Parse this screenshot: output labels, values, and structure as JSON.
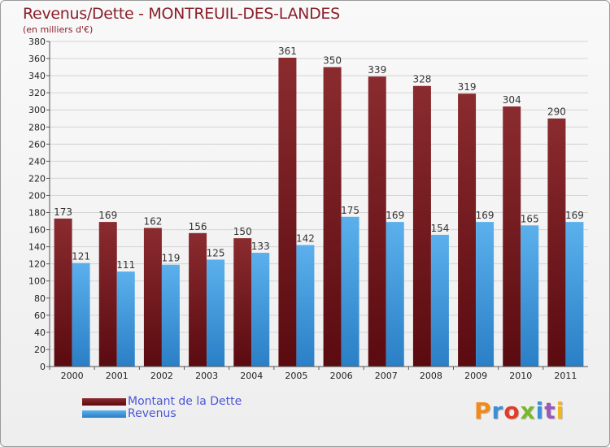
{
  "header": {
    "title": "Revenus/Dette - MONTREUIL-DES-LANDES",
    "subtitle": "(en milliers d'€)"
  },
  "logo": {
    "text": "Proxiti",
    "colors": [
      "#f08a1c",
      "#3a8fd8",
      "#e23b2a",
      "#7ab829",
      "#3a8fd8",
      "#9b59b6",
      "#f0b41c"
    ]
  },
  "chart_data": {
    "type": "bar",
    "title": "Revenus/Dette - MONTREUIL-DES-LANDES",
    "subtitle": "(en milliers d'€)",
    "categories": [
      "2000",
      "2001",
      "2002",
      "2003",
      "2004",
      "2005",
      "2006",
      "2007",
      "2008",
      "2009",
      "2010",
      "2011"
    ],
    "series": [
      {
        "name": "Montant de la Dette",
        "values": [
          173,
          169,
          162,
          156,
          150,
          361,
          350,
          339,
          328,
          319,
          304,
          290
        ],
        "color": "#7a1f22"
      },
      {
        "name": "Revenus",
        "values": [
          121,
          111,
          119,
          125,
          133,
          142,
          175,
          169,
          154,
          169,
          165,
          169
        ],
        "color": "#4aa3e6"
      }
    ],
    "ylim": [
      0,
      380
    ],
    "ytick_step": 20,
    "grid": true,
    "legend_placement": "bottom-left"
  }
}
